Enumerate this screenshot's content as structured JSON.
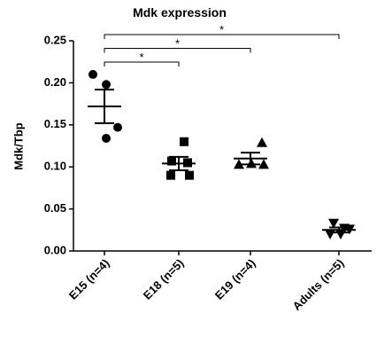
{
  "chart_data": {
    "type": "dot",
    "title": "Mdk expression",
    "y_label": "Mdk/Tbp",
    "categories": [
      "E15 (n=4)",
      "E18 (n=5)",
      "E19 (n=4)",
      "Adults (n=5)"
    ],
    "markers": [
      "circle",
      "square",
      "triangle",
      "triangle-down"
    ],
    "color": "#000000",
    "points": [
      [
        0.21,
        0.198,
        0.147,
        0.134
      ],
      [
        0.13,
        0.107,
        0.105,
        0.09,
        0.09
      ],
      [
        0.129,
        0.103,
        0.104,
        0.103
      ],
      [
        0.033,
        0.027,
        0.026,
        0.02,
        0.02
      ]
    ],
    "means": [
      0.172,
      0.104,
      0.11,
      0.025
    ],
    "sems": [
      0.02,
      0.008,
      0.007,
      0.003
    ],
    "ylim": [
      0,
      0.25
    ],
    "yticks": [
      {
        "value": 0,
        "label": "0.00"
      },
      {
        "value": 0.05,
        "label": "0.05"
      },
      {
        "value": 0.1,
        "label": "0.10"
      },
      {
        "value": 0.15,
        "label": "0.15"
      },
      {
        "value": 0.2,
        "label": "0.20"
      },
      {
        "value": 0.25,
        "label": "0.25"
      }
    ],
    "comparisons": [
      {
        "from": "E15 (n=4)",
        "to": "E18 (n=5)",
        "label": "*"
      },
      {
        "from": "E15 (n=4)",
        "to": "E19 (n=4)",
        "label": "*"
      },
      {
        "from": "E15 (n=4)",
        "to": "Adults (n=5)",
        "label": "*"
      }
    ]
  }
}
